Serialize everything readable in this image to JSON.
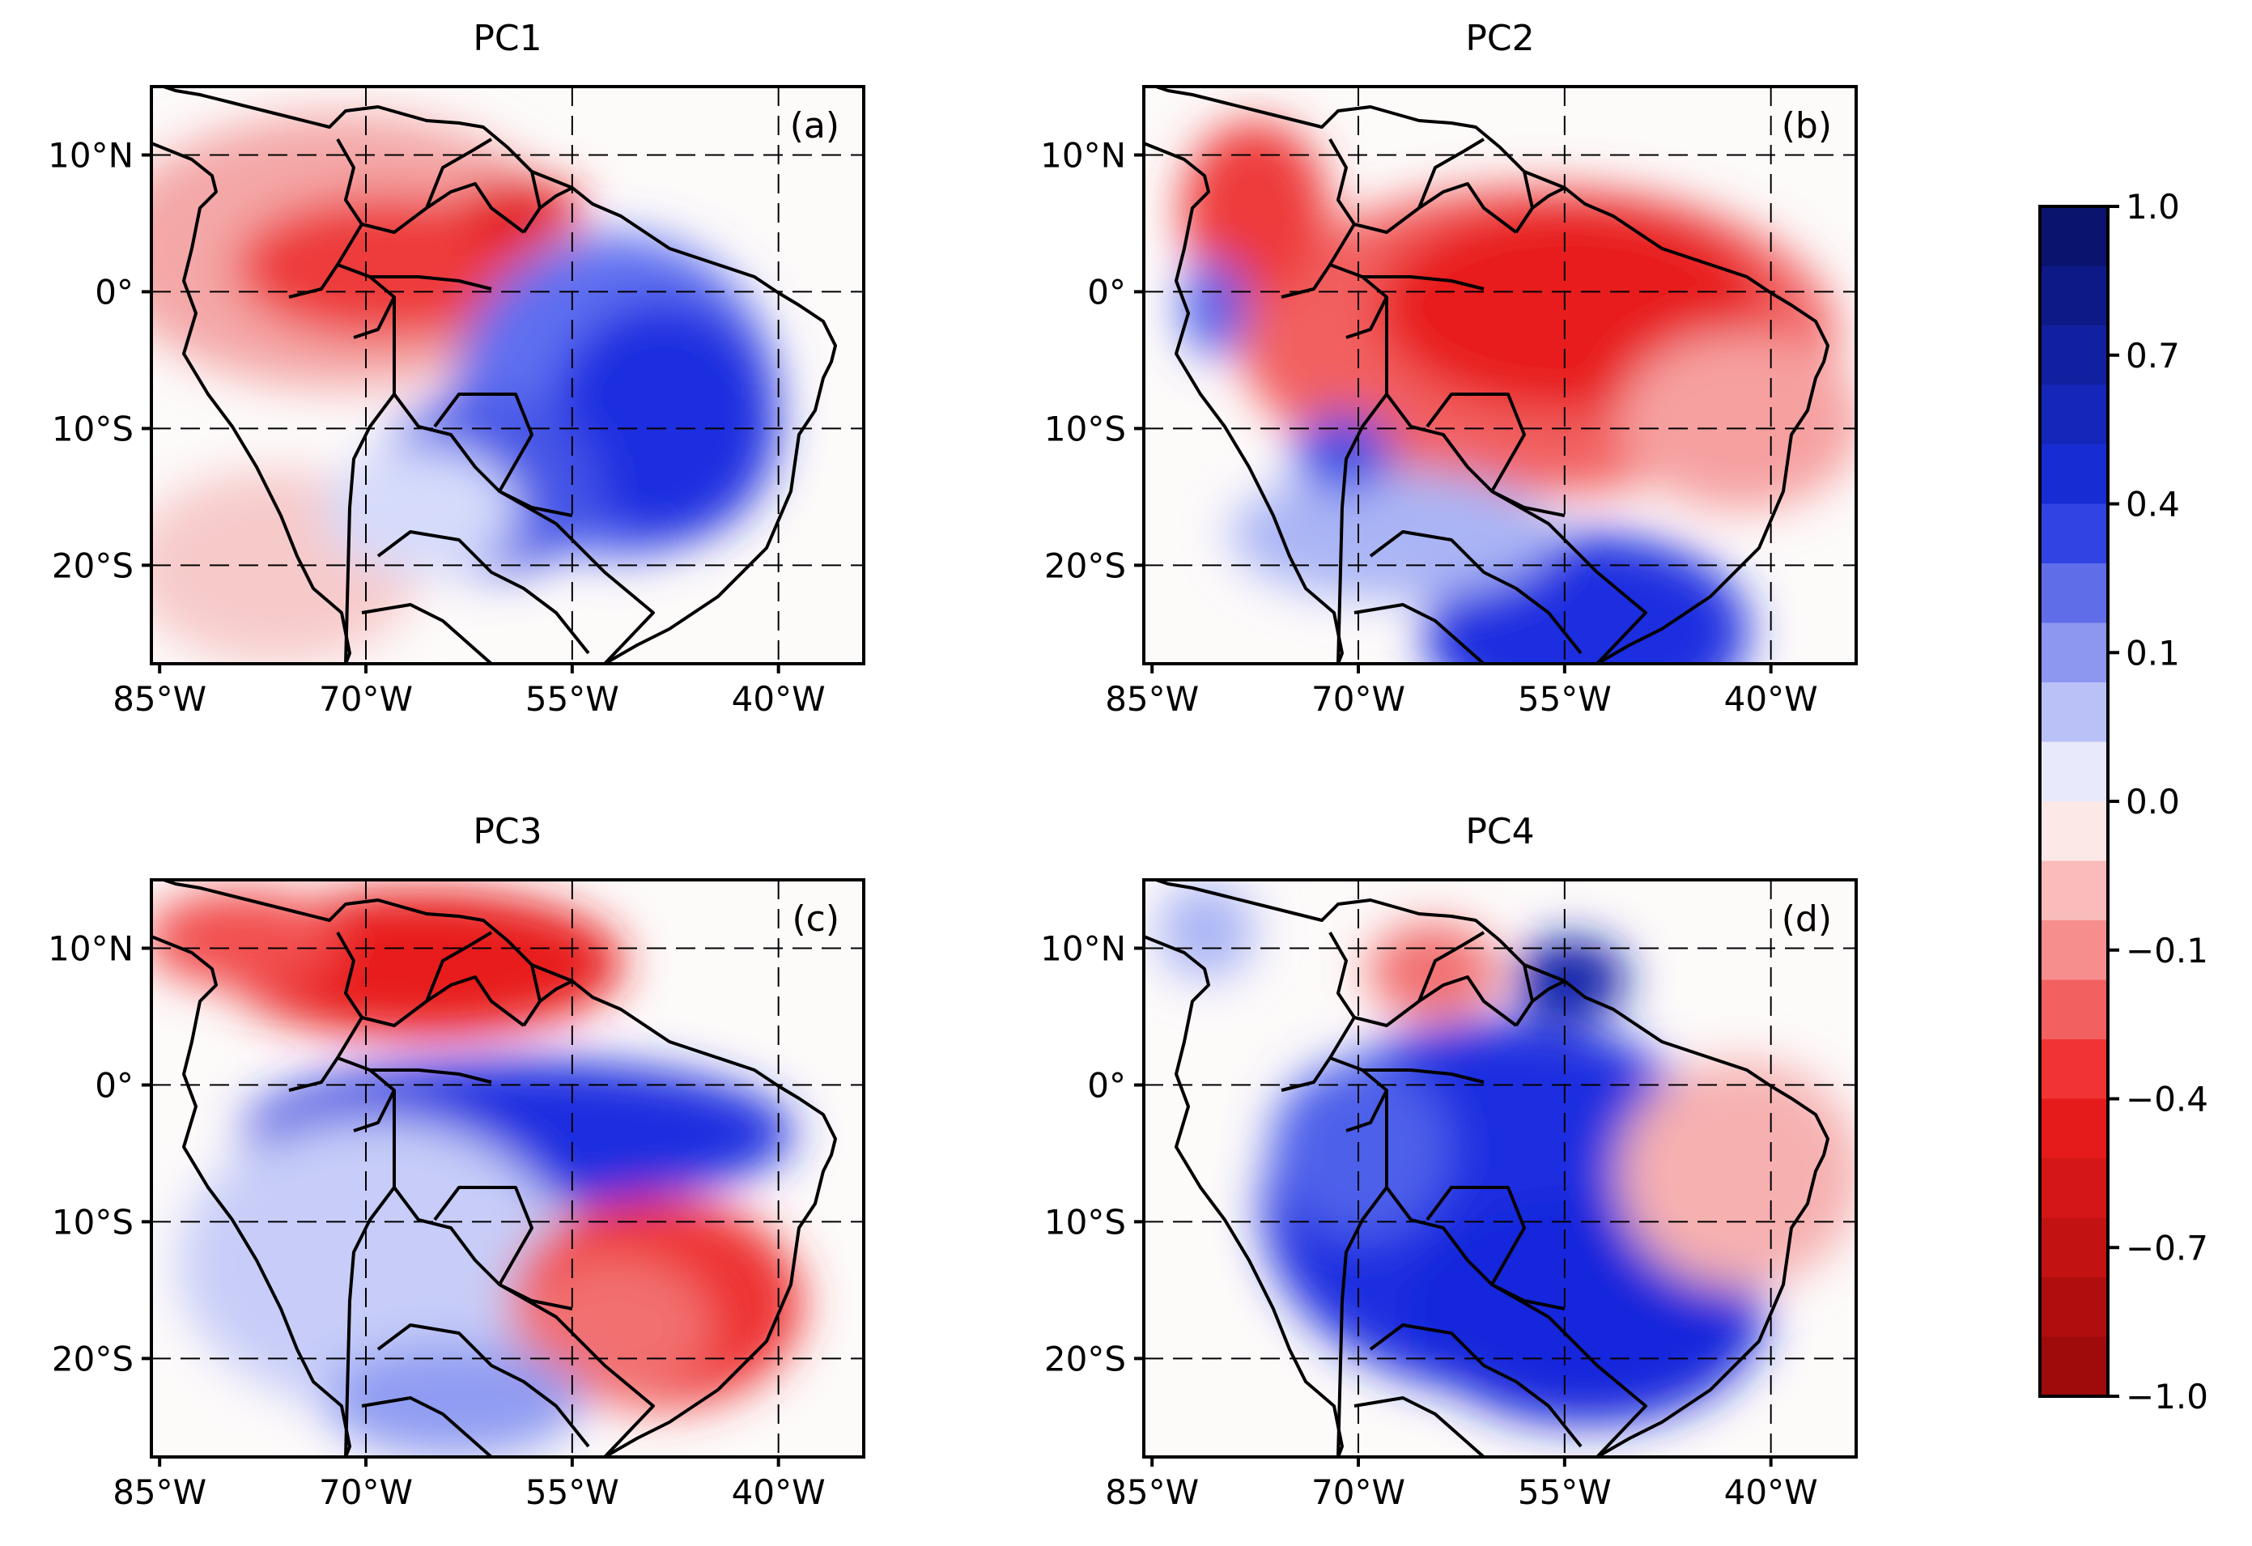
{
  "figure": {
    "panels": [
      {
        "title": "PC1",
        "label": "(a)"
      },
      {
        "title": "PC2",
        "label": "(b)"
      },
      {
        "title": "PC3",
        "label": "(c)"
      },
      {
        "title": "PC4",
        "label": "(d)"
      }
    ],
    "lat_ticks": [
      {
        "lat": 10,
        "label": "10°N"
      },
      {
        "lat": 0,
        "label": "0°"
      },
      {
        "lat": -10,
        "label": "10°S"
      },
      {
        "lat": -20,
        "label": "20°S"
      }
    ],
    "lon_ticks": [
      {
        "lon": -85,
        "label": "85°W"
      },
      {
        "lon": -70,
        "label": "70°W"
      },
      {
        "lon": -55,
        "label": "55°W"
      },
      {
        "lon": -40,
        "label": "40°W"
      }
    ],
    "colorbar": {
      "min": -1.0,
      "max": 1.0,
      "levels": 20,
      "tick_labels": [
        "1.0",
        "0.7",
        "0.4",
        "0.1",
        "0.0",
        "−0.1",
        "−0.4",
        "−0.7",
        "−1.0"
      ]
    },
    "colors": {
      "positive": "#1a2fe0",
      "negative": "#ee1c1c",
      "border": "#000000"
    }
  }
}
